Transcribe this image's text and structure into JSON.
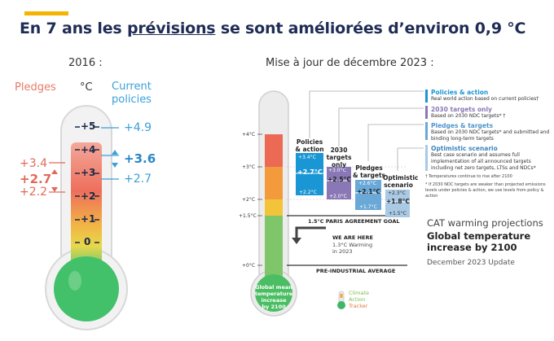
{
  "headline": {
    "before": "En 7 ans les ",
    "underlined": "prévisions",
    "after": " se sont améliorées d’environ 0,9 °C"
  },
  "left": {
    "year_title": "2016 :",
    "pledges_label": "Pledges",
    "unit_label": "°C",
    "current_label_1": "Current",
    "current_label_2": "policies",
    "ticks": [
      "+5",
      "+4",
      "+3",
      "+2",
      "+1",
      "0"
    ],
    "pledges_values": [
      "+3.4",
      "+2.7",
      "+2.2"
    ],
    "current_values": [
      "+4.9",
      "+3.6",
      "+2.7"
    ]
  },
  "right": {
    "title": "Mise à jour de décembre 2023 :",
    "axis_ticks": [
      "+4°C",
      "+3°C",
      "+2°C",
      "+1.5°C",
      "+0°C"
    ],
    "columns": [
      {
        "head": "Policies & action",
        "top": "+3.4°C",
        "mid": "+2.7°C",
        "bottom": "+2.2°C"
      },
      {
        "head": "2030 targets only",
        "top": "+3.0°C",
        "mid": "+2.5°C",
        "bottom": "+2.0°C"
      },
      {
        "head": "Pledges & targets",
        "top": "+2.6°C",
        "mid": "+2.1°C",
        "bottom": "+1.7°C"
      },
      {
        "head": "Optimistic scenario",
        "top": "+2.3°C",
        "mid": "+1.8°C",
        "bottom": "+1.5°C"
      }
    ],
    "legend": [
      {
        "title": "Policies & action",
        "body": "Real world action based on current policies†",
        "color": "#1a96d4"
      },
      {
        "title": "2030 targets only",
        "body": "Based on 2030 NDC targets* †",
        "color": "#8a78b6"
      },
      {
        "title": "Pledges & targets",
        "body": "Based on 2030 NDC targets* and submitted and binding long-term targets",
        "color": "#6aa8d8"
      },
      {
        "title": "Optimistic scenario",
        "body": "Best case scenario and assumes full implementation of all announced targets including net zero targets, LTSs and NDCs*",
        "color": "#a9c9e4"
      }
    ],
    "footnote_1": "† Temperatures continue to rise after 2100",
    "footnote_2": "* If 2030 NDC targets are weaker than projected emissions levels under policies & action, we use levels from policy & action",
    "paris_goal": "1.5°C PARIS AGREEMENT GOAL",
    "we_are_here": "WE ARE HERE",
    "warming_note_1": "1.3°C Warming",
    "warming_note_2": "in 2023",
    "preindustrial": "PRE-INDUSTRIAL AVERAGE",
    "bulb_text": [
      "Global mean",
      "temperature",
      "increase",
      "by 2100"
    ],
    "logo_lines": [
      "Climate",
      "Action",
      "Tracker"
    ],
    "cat_title": "CAT warming projections",
    "cat_bold_1": "Global temperature",
    "cat_bold_2": "increase by 2100",
    "update": "December 2023 Update"
  }
}
